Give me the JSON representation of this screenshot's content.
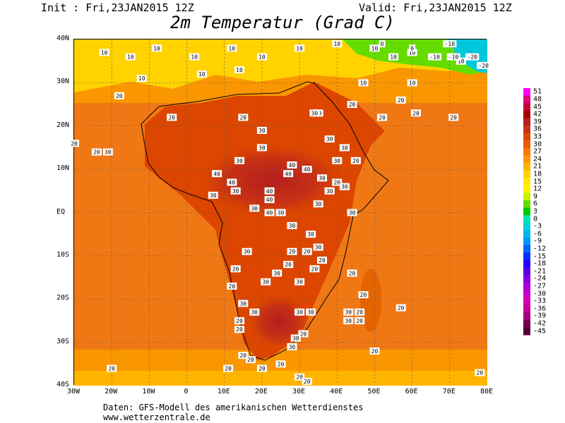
{
  "header": {
    "init": "Init : Fri,23JAN2015 12Z",
    "valid": "Valid: Fri,23JAN2015 12Z",
    "title": "2m Temperatur (Grad C)"
  },
  "map": {
    "lat_labels": [
      "40N",
      "30N",
      "20N",
      "10N",
      "EQ",
      "10S",
      "20S",
      "30S",
      "40S"
    ],
    "lon_labels": [
      "30W",
      "20W",
      "10W",
      "0",
      "10E",
      "20E",
      "30E",
      "40E",
      "50E",
      "60E",
      "70E",
      "80E"
    ],
    "contour_labels": [
      {
        "text": "10",
        "lon": -22,
        "lat": 37
      },
      {
        "text": "10",
        "lon": -15,
        "lat": 36
      },
      {
        "text": "10",
        "lon": -8,
        "lat": 38
      },
      {
        "text": "10",
        "lon": 2,
        "lat": 36
      },
      {
        "text": "10",
        "lon": 12,
        "lat": 38
      },
      {
        "text": "10",
        "lon": 20,
        "lat": 36
      },
      {
        "text": "10",
        "lon": 30,
        "lat": 38
      },
      {
        "text": "10",
        "lon": 40,
        "lat": 39
      },
      {
        "text": "10",
        "lon": 50,
        "lat": 38
      },
      {
        "text": "10",
        "lon": 55,
        "lat": 36
      },
      {
        "text": "10",
        "lon": 60,
        "lat": 37
      },
      {
        "text": "10",
        "lon": 73,
        "lat": 35
      },
      {
        "text": "10",
        "lon": -12,
        "lat": 31
      },
      {
        "text": "10",
        "lon": 4,
        "lat": 32
      },
      {
        "text": "10",
        "lon": 14,
        "lat": 33
      },
      {
        "text": "10",
        "lon": 47,
        "lat": 30
      },
      {
        "text": "10",
        "lon": 60,
        "lat": 30
      },
      {
        "text": "0",
        "lon": 52,
        "lat": 39
      },
      {
        "text": "0",
        "lon": 60,
        "lat": 38
      },
      {
        "text": "-10",
        "lon": 66,
        "lat": 36
      },
      {
        "text": "-10",
        "lon": 71,
        "lat": 36
      },
      {
        "text": "-20",
        "lon": 76,
        "lat": 36
      },
      {
        "text": "-20",
        "lon": 79,
        "lat": 34
      },
      {
        "text": "-10",
        "lon": 70,
        "lat": 39
      },
      {
        "text": "20",
        "lon": -18,
        "lat": 27
      },
      {
        "text": "20",
        "lon": -4,
        "lat": 22
      },
      {
        "text": "20",
        "lon": 15,
        "lat": 22
      },
      {
        "text": "20",
        "lon": 35,
        "lat": 23
      },
      {
        "text": "20",
        "lon": 44,
        "lat": 25
      },
      {
        "text": "20",
        "lon": 52,
        "lat": 22
      },
      {
        "text": "20",
        "lon": 57,
        "lat": 26
      },
      {
        "text": "20",
        "lon": 61,
        "lat": 23
      },
      {
        "text": "20",
        "lon": 71,
        "lat": 22
      },
      {
        "text": "20",
        "lon": -30,
        "lat": 16
      },
      {
        "text": "20",
        "lon": -24,
        "lat": 14
      },
      {
        "text": "30",
        "lon": -21,
        "lat": 14
      },
      {
        "text": "30",
        "lon": 20,
        "lat": 19
      },
      {
        "text": "30",
        "lon": 34,
        "lat": 23
      },
      {
        "text": "30",
        "lon": 38,
        "lat": 17
      },
      {
        "text": "30",
        "lon": 42,
        "lat": 15
      },
      {
        "text": "30",
        "lon": 40,
        "lat": 12
      },
      {
        "text": "20",
        "lon": 45,
        "lat": 12
      },
      {
        "text": "30",
        "lon": 14,
        "lat": 12
      },
      {
        "text": "30",
        "lon": 20,
        "lat": 15
      },
      {
        "text": "40",
        "lon": 8,
        "lat": 9
      },
      {
        "text": "40",
        "lon": 12,
        "lat": 7
      },
      {
        "text": "30",
        "lon": 13,
        "lat": 5
      },
      {
        "text": "30",
        "lon": 7,
        "lat": 4
      },
      {
        "text": "40",
        "lon": 22,
        "lat": 5
      },
      {
        "text": "40",
        "lon": 22,
        "lat": 3
      },
      {
        "text": "40",
        "lon": 22,
        "lat": 0
      },
      {
        "text": "30",
        "lon": 18,
        "lat": 1
      },
      {
        "text": "30",
        "lon": 25,
        "lat": 0
      },
      {
        "text": "40",
        "lon": 28,
        "lat": 11
      },
      {
        "text": "40",
        "lon": 27,
        "lat": 9
      },
      {
        "text": "40",
        "lon": 32,
        "lat": 10
      },
      {
        "text": "30",
        "lon": 36,
        "lat": 8
      },
      {
        "text": "30",
        "lon": 38,
        "lat": 5
      },
      {
        "text": "20",
        "lon": 40,
        "lat": 7
      },
      {
        "text": "30",
        "lon": 42,
        "lat": 6
      },
      {
        "text": "30",
        "lon": 35,
        "lat": 2
      },
      {
        "text": "30",
        "lon": 44,
        "lat": 0
      },
      {
        "text": "30",
        "lon": 28,
        "lat": -3
      },
      {
        "text": "30",
        "lon": 33,
        "lat": -5
      },
      {
        "text": "30",
        "lon": 35,
        "lat": -8
      },
      {
        "text": "20",
        "lon": 36,
        "lat": -11
      },
      {
        "text": "20",
        "lon": 28,
        "lat": -9
      },
      {
        "text": "20",
        "lon": 32,
        "lat": -9
      },
      {
        "text": "20",
        "lon": 34,
        "lat": -13
      },
      {
        "text": "30",
        "lon": 16,
        "lat": -9
      },
      {
        "text": "30",
        "lon": 24,
        "lat": -14
      },
      {
        "text": "20",
        "lon": 27,
        "lat": -12
      },
      {
        "text": "30",
        "lon": 30,
        "lat": -16
      },
      {
        "text": "30",
        "lon": 21,
        "lat": -16
      },
      {
        "text": "20",
        "lon": 13,
        "lat": -13
      },
      {
        "text": "20",
        "lon": 12,
        "lat": -17
      },
      {
        "text": "20",
        "lon": 44,
        "lat": -14
      },
      {
        "text": "20",
        "lon": 47,
        "lat": -19
      },
      {
        "text": "20",
        "lon": 57,
        "lat": -22
      },
      {
        "text": "30",
        "lon": 15,
        "lat": -21
      },
      {
        "text": "30",
        "lon": 18,
        "lat": -23
      },
      {
        "text": "20",
        "lon": 14,
        "lat": -25
      },
      {
        "text": "20",
        "lon": 14,
        "lat": -27
      },
      {
        "text": "30",
        "lon": 30,
        "lat": -23
      },
      {
        "text": "30",
        "lon": 33,
        "lat": -23
      },
      {
        "text": "30",
        "lon": 43,
        "lat": -23
      },
      {
        "text": "30",
        "lon": 43,
        "lat": -25
      },
      {
        "text": "20",
        "lon": 46,
        "lat": -23
      },
      {
        "text": "20",
        "lon": 46,
        "lat": -25
      },
      {
        "text": "20",
        "lon": 31,
        "lat": -28
      },
      {
        "text": "30",
        "lon": 29,
        "lat": -29
      },
      {
        "text": "30",
        "lon": 28,
        "lat": -31
      },
      {
        "text": "20",
        "lon": 15,
        "lat": -33
      },
      {
        "text": "20",
        "lon": 17,
        "lat": -34
      },
      {
        "text": "20",
        "lon": 20,
        "lat": -36
      },
      {
        "text": "20",
        "lon": 11,
        "lat": -36
      },
      {
        "text": "20",
        "lon": 25,
        "lat": -35
      },
      {
        "text": "20",
        "lon": 30,
        "lat": -38
      },
      {
        "text": "20",
        "lon": 32,
        "lat": -39
      },
      {
        "text": "20",
        "lon": -20,
        "lat": -36
      },
      {
        "text": "20",
        "lon": 50,
        "lat": -32
      },
      {
        "text": "20",
        "lon": 78,
        "lat": -37
      }
    ]
  },
  "legend": {
    "labels": [
      "51",
      "48",
      "45",
      "42",
      "39",
      "36",
      "33",
      "30",
      "27",
      "24",
      "21",
      "18",
      "15",
      "12",
      "9",
      "6",
      "3",
      "0",
      "-3",
      "-6",
      "-9",
      "-12",
      "-15",
      "-18",
      "-21",
      "-24",
      "-27",
      "-30",
      "-33",
      "-36",
      "-39",
      "-42",
      "-45"
    ],
    "colors": [
      "#ff00ff",
      "#e0007a",
      "#c8003c",
      "#aa0000",
      "#b41e1e",
      "#c83214",
      "#dc4600",
      "#f05a00",
      "#fa7800",
      "#ff9600",
      "#ffb400",
      "#ffd200",
      "#ffe600",
      "#fff000",
      "#c8f000",
      "#64dc00",
      "#00c800",
      "#00e6b4",
      "#00d2dc",
      "#00b4f0",
      "#0096ff",
      "#0064ff",
      "#0032ff",
      "#2800ff",
      "#5a00e6",
      "#8200e6",
      "#aa00dc",
      "#c800c8",
      "#dc00b4",
      "#c80096",
      "#a00078",
      "#780050",
      "#500032"
    ]
  },
  "footer": {
    "line1": "Daten: GFS-Modell des amerikanischen Wetterdienstes",
    "line2": "www.wetterzentrale.de"
  }
}
